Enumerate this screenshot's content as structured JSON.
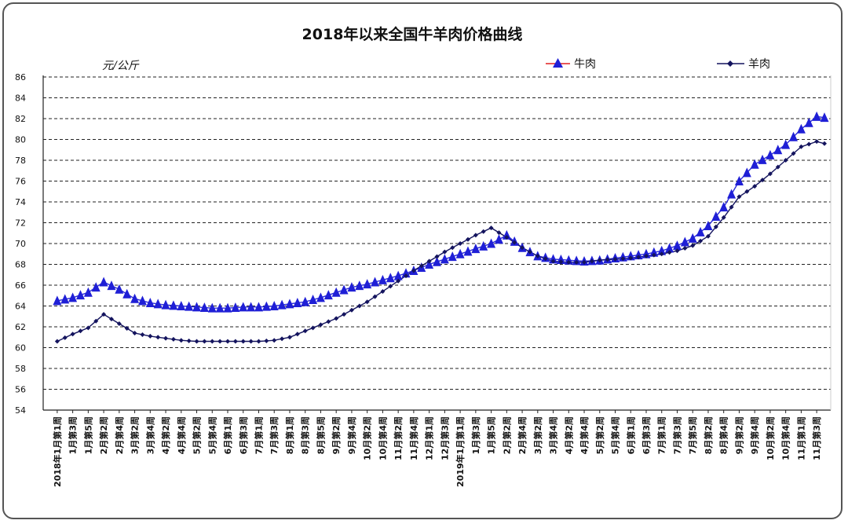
{
  "chart_data": {
    "type": "line",
    "title": "2018年以来全国牛羊肉价格曲线",
    "ylabel": "元/公斤",
    "xlabel": "",
    "ylim": [
      54,
      86
    ],
    "yticks": [
      54,
      56,
      58,
      60,
      62,
      64,
      66,
      68,
      70,
      72,
      74,
      76,
      78,
      80,
      82,
      84,
      86
    ],
    "grid": true,
    "legend_position": "top-right",
    "x": [
      "2018年1月第1周",
      "1月第3周",
      "1月第5周",
      "2月第2周",
      "2月第4周",
      "3月第2周",
      "3月第4周",
      "4月第2周",
      "4月第4周",
      "5月第2周",
      "5月第4周",
      "6月第1周",
      "6月第3周",
      "7月第1周",
      "7月第3周",
      "8月第1周",
      "8月第3周",
      "8月第5周",
      "9月第2周",
      "9月第4周",
      "10月第2周",
      "10月第4周",
      "11月第2周",
      "11月第4周",
      "12月第1周",
      "12月第3周",
      "2019年1月第1周",
      "1月第3周",
      "1月第5周",
      "2月第2周",
      "2月第4周",
      "3月第2周",
      "3月第4周",
      "4月第2周",
      "4月第4周",
      "5月第2周",
      "5月第4周",
      "6月第1周",
      "6月第3周",
      "7月第1周",
      "7月第3周",
      "7月第5周",
      "8月第2周",
      "8月第4周",
      "9月第2周",
      "9月第4周",
      "10月第2周",
      "10月第4周",
      "11月第1周",
      "11月第3周"
    ],
    "series": [
      {
        "name": "牛肉",
        "color": "#1f1fd6",
        "marker": "triangle",
        "values": [
          64.5,
          64.8,
          65.3,
          66.3,
          65.6,
          64.7,
          64.3,
          64.1,
          64.0,
          63.9,
          63.8,
          63.8,
          63.9,
          63.9,
          64.0,
          64.2,
          64.4,
          64.8,
          65.3,
          65.8,
          66.1,
          66.5,
          66.9,
          67.4,
          68.0,
          68.5,
          69.0,
          69.5,
          70.0,
          70.8,
          69.6,
          68.8,
          68.5,
          68.4,
          68.3,
          68.4,
          68.6,
          68.8,
          69.0,
          69.3,
          69.8,
          70.5,
          71.7,
          73.5,
          76.0,
          77.6,
          78.5,
          79.5,
          81.0,
          82.2
        ],
        "values_tail": [
          82.1
        ]
      },
      {
        "name": "羊肉",
        "color": "#14145e",
        "marker": "diamond",
        "values": [
          60.6,
          61.3,
          61.9,
          63.2,
          62.3,
          61.4,
          61.1,
          60.9,
          60.7,
          60.6,
          60.6,
          60.6,
          60.6,
          60.6,
          60.7,
          61.0,
          61.6,
          62.2,
          62.8,
          63.6,
          64.4,
          65.4,
          66.4,
          67.4,
          68.3,
          69.2,
          70.0,
          70.8,
          71.5,
          70.6,
          69.6,
          68.8,
          68.3,
          68.2,
          68.2,
          68.4,
          68.5,
          68.6,
          68.8,
          69.0,
          69.3,
          69.8,
          70.7,
          72.5,
          74.5,
          75.5,
          76.7,
          78.0,
          79.3,
          79.8
        ],
        "values_tail": [
          79.6
        ]
      }
    ]
  }
}
